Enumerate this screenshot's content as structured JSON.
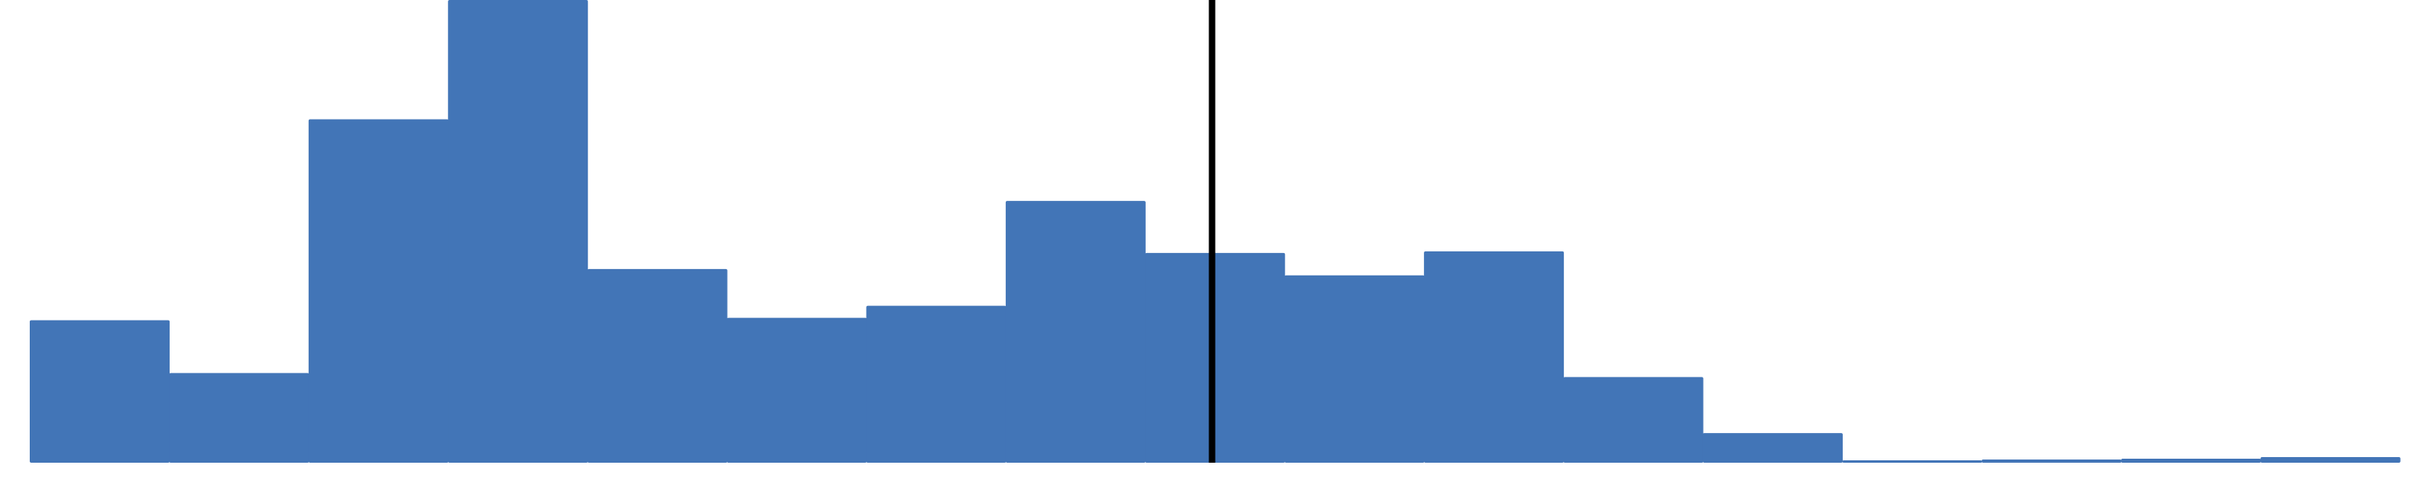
{
  "chart_data": {
    "type": "bar",
    "title": "",
    "xlabel": "",
    "ylabel": "",
    "bins": 17,
    "values": [
      178,
      112,
      429,
      578,
      242,
      181,
      196,
      327,
      262,
      234,
      264,
      107,
      37,
      3,
      4,
      5,
      7
    ],
    "ylim": [
      0,
      578
    ],
    "grid": false,
    "legend": "none",
    "bar_color": "#4275b7",
    "bars_touch": true,
    "reference_line": {
      "bin_position": 8.48,
      "color": "#000000"
    }
  }
}
